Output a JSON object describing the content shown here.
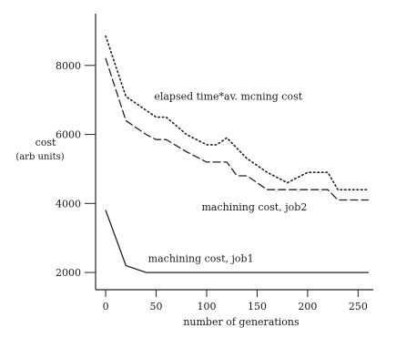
{
  "chart_data": {
    "type": "line",
    "title": "",
    "xlabel": "number of generations",
    "ylabel": "cost",
    "ylabel_unit": "(arb units)",
    "xlim": [
      -10,
      265
    ],
    "ylim": [
      1500,
      9500
    ],
    "x_ticks": [
      0,
      50,
      100,
      150,
      200,
      250
    ],
    "y_ticks": [
      2000,
      4000,
      6000,
      8000
    ],
    "grid": false,
    "legend": "none",
    "series": [
      {
        "name": "elapsed time*av. mcning cost",
        "style": "dotted",
        "color": "#222222",
        "x": [
          0,
          20,
          40,
          50,
          60,
          80,
          100,
          110,
          120,
          130,
          140,
          160,
          180,
          200,
          220,
          230,
          240,
          260
        ],
        "y": [
          8850,
          7100,
          6700,
          6500,
          6500,
          6000,
          5700,
          5700,
          5900,
          5600,
          5300,
          4900,
          4600,
          4900,
          4900,
          4400,
          4400,
          4400
        ]
      },
      {
        "name": "machining cost, job2",
        "style": "dashed",
        "color": "#222222",
        "x": [
          0,
          20,
          40,
          50,
          60,
          80,
          100,
          110,
          120,
          130,
          140,
          160,
          180,
          200,
          220,
          230,
          240,
          260
        ],
        "y": [
          8200,
          6400,
          6000,
          5850,
          5850,
          5500,
          5200,
          5200,
          5200,
          4800,
          4800,
          4400,
          4400,
          4400,
          4400,
          4100,
          4100,
          4100
        ]
      },
      {
        "name": "machining cost, job1",
        "style": "solid",
        "color": "#222222",
        "x": [
          0,
          20,
          40,
          60,
          100,
          150,
          200,
          260
        ],
        "y": [
          3800,
          2200,
          2000,
          2000,
          2000,
          2000,
          2000,
          2000
        ]
      }
    ],
    "annotations": [
      {
        "text": "elapsed time*av. mcning cost",
        "x": 48,
        "y": 7000
      },
      {
        "text": "machining cost, job2",
        "x": 95,
        "y": 3800
      },
      {
        "text": "machining cost, job1",
        "x": 42,
        "y": 2300
      }
    ]
  }
}
